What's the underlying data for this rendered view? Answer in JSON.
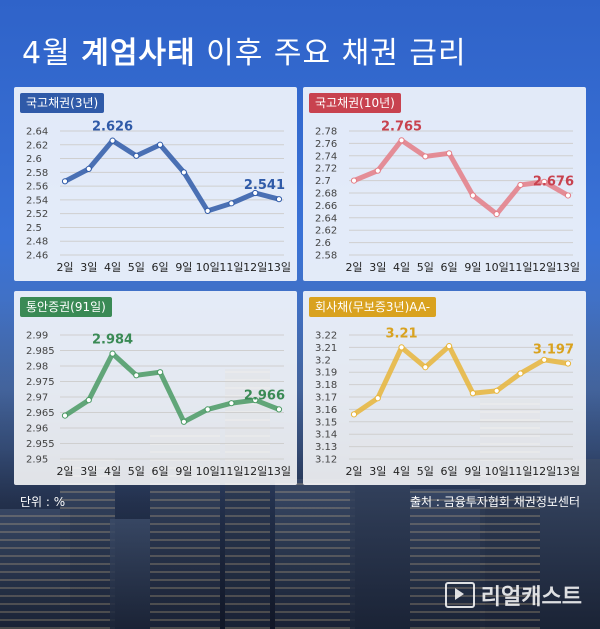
{
  "title": {
    "prefix": "4월 ",
    "bold": "계엄사태",
    "suffix": " 이후 주요 채권 금리"
  },
  "unit_label": "단위 : %",
  "source_label": "출처 : 금융투자협회 채권정보센터",
  "logo": {
    "text": "리얼캐스트",
    "icon": "play-button-icon"
  },
  "chart_data": [
    {
      "type": "line",
      "title": "국고채권(3년)",
      "color": "#2f5aa8",
      "tag_color": "#2f5aa8",
      "categories": [
        "2일",
        "3일",
        "4일",
        "5일",
        "6일",
        "9일",
        "10일",
        "11일",
        "12일",
        "13일"
      ],
      "series": [
        {
          "values": [
            2.567,
            2.585,
            2.626,
            2.604,
            2.62,
            2.58,
            2.524,
            2.535,
            2.55,
            2.541
          ]
        }
      ],
      "ylim": [
        2.46,
        2.64
      ],
      "yticks": [
        "2.64",
        "2.62",
        "2.6",
        "2.58",
        "2.56",
        "2.54",
        "2.52",
        "2.5",
        "2.48",
        "2.46"
      ],
      "ytick_step": 0.02,
      "annotations": [
        {
          "index": 2,
          "label": "2.626"
        },
        {
          "index": 9,
          "label": "2.541"
        }
      ],
      "grid": true
    },
    {
      "type": "line",
      "title": "국고채권(10년)",
      "color": "#e47d86",
      "tag_color": "#c8424f",
      "categories": [
        "2일",
        "3일",
        "4일",
        "5일",
        "6일",
        "9일",
        "10일",
        "11일",
        "12일",
        "13일"
      ],
      "series": [
        {
          "values": [
            2.7,
            2.716,
            2.765,
            2.739,
            2.744,
            2.676,
            2.646,
            2.693,
            2.698,
            2.676
          ]
        }
      ],
      "ylim": [
        2.58,
        2.78
      ],
      "yticks": [
        "2.78",
        "2.76",
        "2.74",
        "2.72",
        "2.7",
        "2.68",
        "2.66",
        "2.64",
        "2.62",
        "2.6",
        "2.58"
      ],
      "ytick_step": 0.02,
      "annotations": [
        {
          "index": 2,
          "label": "2.765"
        },
        {
          "index": 9,
          "label": "2.676"
        }
      ],
      "grid": true
    },
    {
      "type": "line",
      "title": "통안증권(91일)",
      "color": "#4a9a64",
      "tag_color": "#3a8a55",
      "categories": [
        "2일",
        "3일",
        "4일",
        "5일",
        "6일",
        "9일",
        "10일",
        "11일",
        "12일",
        "13일"
      ],
      "series": [
        {
          "values": [
            2.964,
            2.969,
            2.984,
            2.977,
            2.978,
            2.962,
            2.966,
            2.968,
            2.969,
            2.966
          ]
        }
      ],
      "ylim": [
        2.95,
        2.99
      ],
      "yticks": [
        "2.99",
        "2.985",
        "2.98",
        "2.975",
        "2.97",
        "2.965",
        "2.96",
        "2.955",
        "2.95"
      ],
      "ytick_step": 0.005,
      "annotations": [
        {
          "index": 2,
          "label": "2.984"
        },
        {
          "index": 9,
          "label": "2.966"
        }
      ],
      "grid": true
    },
    {
      "type": "line",
      "title": "회사채(무보증3년)AA-",
      "color": "#e8b53a",
      "tag_color": "#d9a21f",
      "categories": [
        "2일",
        "3일",
        "4일",
        "5일",
        "6일",
        "9일",
        "10일",
        "11일",
        "12일",
        "13일"
      ],
      "series": [
        {
          "values": [
            3.156,
            3.169,
            3.21,
            3.194,
            3.211,
            3.173,
            3.175,
            3.189,
            3.2,
            3.197
          ]
        }
      ],
      "ylim": [
        3.12,
        3.22
      ],
      "yticks": [
        "3.22",
        "3.21",
        "3.2",
        "3.19",
        "3.18",
        "3.17",
        "3.16",
        "3.15",
        "3.14",
        "3.13",
        "3.12"
      ],
      "ytick_step": 0.01,
      "annotations": [
        {
          "index": 2,
          "label": "3.21"
        },
        {
          "index": 9,
          "label": "3.197"
        }
      ],
      "grid": true
    }
  ]
}
